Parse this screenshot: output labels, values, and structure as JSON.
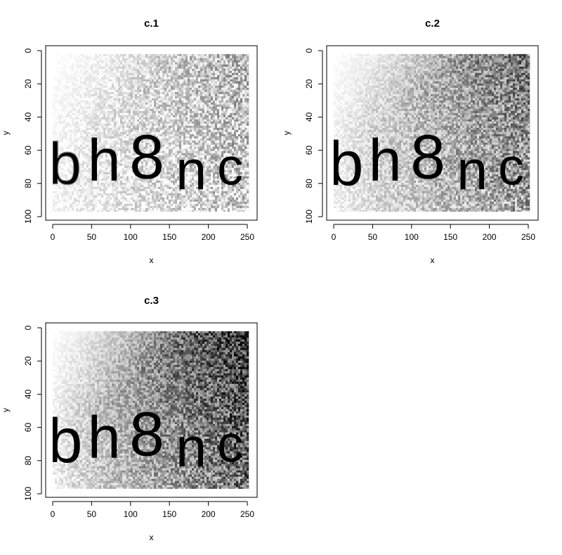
{
  "chart_data": [
    {
      "type": "heatmap",
      "title": "c.1",
      "xlabel": "x",
      "ylabel": "y",
      "xlim": [
        0,
        250
      ],
      "ylim": [
        100,
        0
      ],
      "x_ticks": [
        0,
        50,
        100,
        150,
        200,
        250
      ],
      "y_ticks": [
        0,
        20,
        40,
        60,
        80,
        100
      ],
      "image_extent": {
        "x": [
          0,
          252
        ],
        "y": [
          2,
          97
        ]
      },
      "colormap": [
        "#ffffff",
        "#000000"
      ],
      "background_darkness": {
        "left": 0.02,
        "right": 0.3,
        "noise": 0.22
      },
      "glyphs": [
        {
          "char": "b",
          "x": 16,
          "y": 68,
          "height": 34,
          "darkness": 0.18,
          "outline": true
        },
        {
          "char": "h",
          "x": 66,
          "y": 66,
          "height": 34,
          "darkness": 0.95
        },
        {
          "char": "8",
          "x": 121,
          "y": 64,
          "height": 36,
          "darkness": 0.95
        },
        {
          "char": "n",
          "x": 178,
          "y": 72,
          "height": 32,
          "darkness": -0.8
        },
        {
          "char": "c",
          "x": 228,
          "y": 70,
          "height": 30,
          "darkness": -0.7
        }
      ]
    },
    {
      "type": "heatmap",
      "title": "c.2",
      "xlabel": "x",
      "ylabel": "y",
      "xlim": [
        0,
        250
      ],
      "ylim": [
        100,
        0
      ],
      "x_ticks": [
        0,
        50,
        100,
        150,
        200,
        250
      ],
      "y_ticks": [
        0,
        20,
        40,
        60,
        80,
        100
      ],
      "image_extent": {
        "x": [
          0,
          252
        ],
        "y": [
          2,
          97
        ]
      },
      "colormap": [
        "#ffffff",
        "#000000"
      ],
      "background_darkness": {
        "left": 0.05,
        "right": 0.55,
        "noise": 0.24
      },
      "glyphs": [
        {
          "char": "b",
          "x": 16,
          "y": 68,
          "height": 36,
          "darkness": 0.98
        },
        {
          "char": "h",
          "x": 66,
          "y": 66,
          "height": 34,
          "darkness": 0.95
        },
        {
          "char": "8",
          "x": 121,
          "y": 64,
          "height": 36,
          "darkness": 0.95
        },
        {
          "char": "n",
          "x": 178,
          "y": 72,
          "height": 32,
          "darkness": -0.9
        },
        {
          "char": "c",
          "x": 228,
          "y": 70,
          "height": 30,
          "darkness": -0.9
        }
      ]
    },
    {
      "type": "heatmap",
      "title": "c.3",
      "xlabel": "x",
      "ylabel": "y",
      "xlim": [
        0,
        250
      ],
      "ylim": [
        100,
        0
      ],
      "x_ticks": [
        0,
        50,
        100,
        150,
        200,
        250
      ],
      "y_ticks": [
        0,
        20,
        40,
        60,
        80,
        100
      ],
      "image_extent": {
        "x": [
          0,
          252
        ],
        "y": [
          2,
          97
        ]
      },
      "colormap": [
        "#ffffff",
        "#000000"
      ],
      "background_darkness": {
        "left": 0.05,
        "right": 0.8,
        "noise": 0.28
      },
      "glyphs": [
        {
          "char": "b",
          "x": 16,
          "y": 68,
          "height": 36,
          "darkness": 0.98
        },
        {
          "char": "h",
          "x": 66,
          "y": 66,
          "height": 34,
          "darkness": 0.95
        },
        {
          "char": "8",
          "x": 121,
          "y": 64,
          "height": 36,
          "darkness": 0.95
        },
        {
          "char": "n",
          "x": 178,
          "y": 72,
          "height": 32,
          "darkness": 0.95
        },
        {
          "char": "c",
          "x": 228,
          "y": 70,
          "height": 30,
          "darkness": 0.9
        }
      ]
    }
  ]
}
